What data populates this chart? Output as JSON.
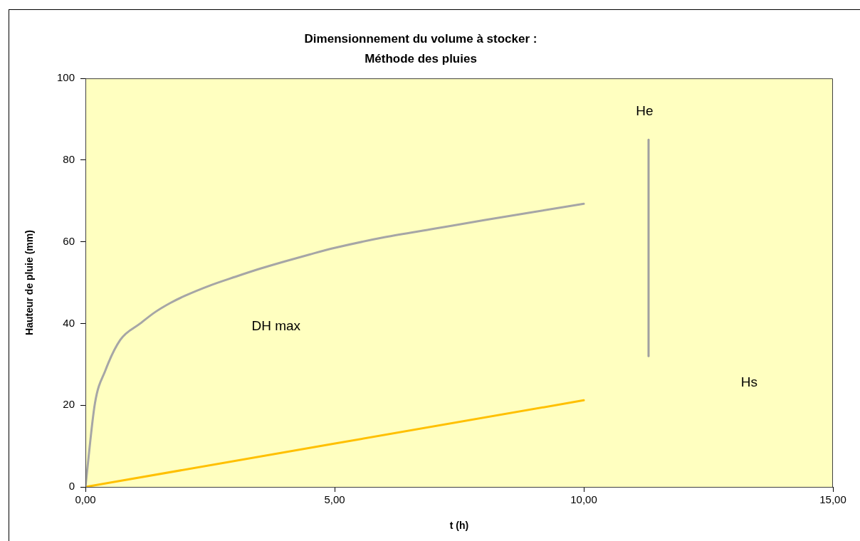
{
  "chart_data": {
    "type": "line",
    "title": "Dimensionnement du volume à stocker :\nMéthode des pluies",
    "xlabel": "t (h)",
    "ylabel": "Hauteur de pluie (mm)",
    "series": [
      {
        "x": [
          0,
          0.19,
          0.4,
          0.7,
          1.1,
          1.4,
          1.7,
          2,
          2.5,
          3,
          3.5,
          4,
          4.5,
          5,
          6,
          7,
          8,
          9,
          10
        ],
        "values": [
          0,
          20.4,
          28.5,
          36,
          40,
          42.8,
          45,
          46.8,
          49.3,
          51.4,
          53.4,
          55.2,
          56.9,
          58.5,
          61.1,
          63.2,
          65.3,
          67.3,
          69.3
        ],
        "color": "#a6a6a6"
      },
      {
        "x": [
          0,
          10
        ],
        "values": [
          0,
          21.2
        ],
        "color": "#ffc000"
      },
      {
        "x": [
          11.3,
          11.3
        ],
        "values": [
          32,
          85
        ],
        "color": "#a0a0a0"
      }
    ],
    "xlim": [
      0,
      15
    ],
    "xticks": [
      {
        "value": 0,
        "label": "0,00"
      },
      {
        "value": 5,
        "label": "5,00"
      },
      {
        "value": 10,
        "label": "10,00"
      },
      {
        "value": 15,
        "label": "15,00"
      }
    ],
    "ylim": [
      0,
      100
    ],
    "yticks": [
      0,
      20,
      40,
      60,
      80,
      100
    ],
    "annotations": [
      "He",
      "Hs",
      "DH max"
    ],
    "grid": false,
    "legend": false,
    "marker": "none"
  }
}
